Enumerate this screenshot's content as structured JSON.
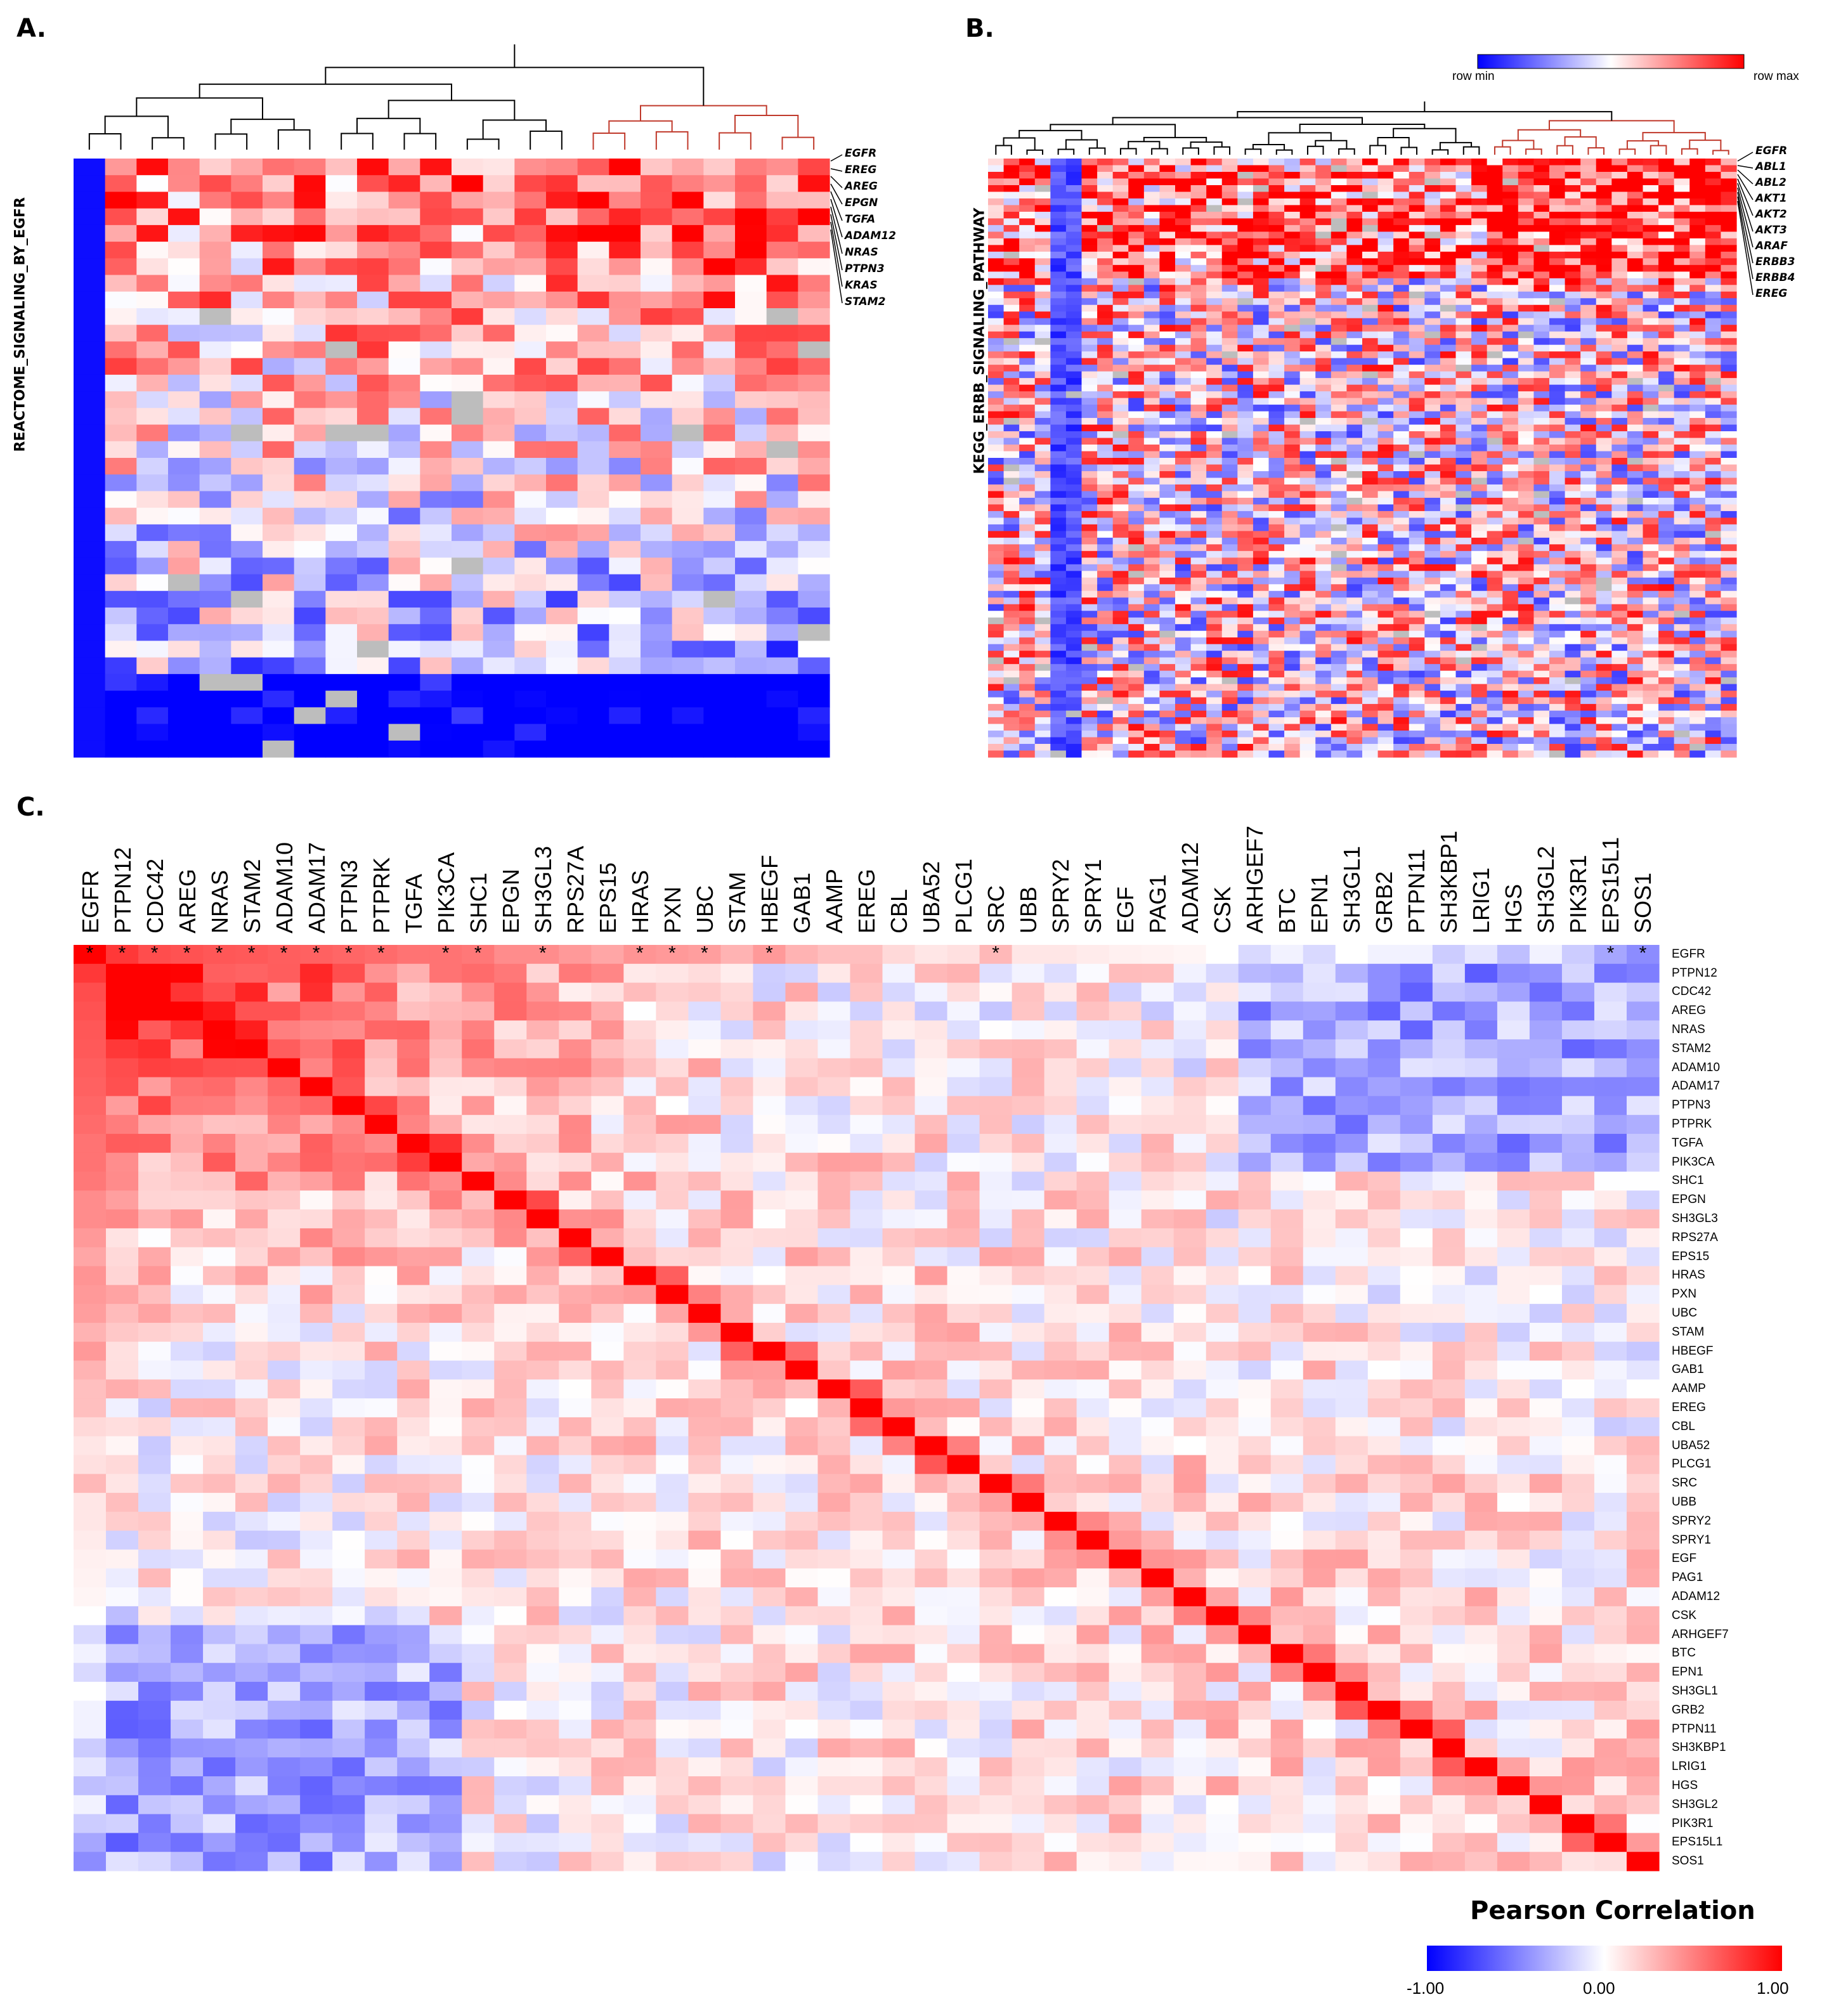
{
  "panels": {
    "a": {
      "letter": "A.",
      "ylabel": "REACTOME_SIGNALING_BY_EGFR",
      "genes": [
        "EGFR",
        "EREG",
        "AREG",
        "EPGN",
        "TGFA",
        "ADAM12",
        "NRAS",
        "PTPN3",
        "KRAS",
        "STAM2"
      ]
    },
    "b": {
      "letter": "B.",
      "ylabel": "KEGG_ERBB_SIGNALING_PATHWAY",
      "genes": [
        "EGFR",
        "ABL1",
        "ABL2",
        "AKT1",
        "AKT2",
        "AKT3",
        "ARAF",
        "ERBB3",
        "ERBB4",
        "EREG"
      ],
      "legend_min": "row min",
      "legend_max": "row max"
    },
    "c": {
      "letter": "C."
    }
  },
  "colors": {
    "blue": "#0000ff",
    "white": "#ffffff",
    "red": "#ff0000",
    "gray": "#bdbdbd",
    "cluster_red": "#c0392b"
  },
  "chart_data": [
    {
      "type": "heatmap",
      "panel": "A",
      "ylabel": "REACTOME_SIGNALING_BY_EGFR",
      "row_labels": [
        "EGFR",
        "EREG",
        "AREG",
        "EPGN",
        "TGFA",
        "ADAM12",
        "NRAS",
        "PTPN3",
        "KRAS",
        "STAM2"
      ],
      "n_rows": 36,
      "n_cols": 24,
      "legend": [
        "row min",
        "row max"
      ],
      "dendrogram": "top"
    },
    {
      "type": "heatmap",
      "panel": "B",
      "ylabel": "KEGG_ERBB_SIGNALING_PATHWAY",
      "row_labels": [
        "EGFR",
        "ABL1",
        "ABL2",
        "AKT1",
        "AKT2",
        "AKT3",
        "ARAF",
        "ERBB3",
        "ERBB4",
        "EREG"
      ],
      "n_rows": 90,
      "n_cols": 48,
      "legend": [
        "row min",
        "row max"
      ],
      "dendrogram": "top"
    },
    {
      "type": "heatmap",
      "panel": "C",
      "legend_title": "Pearson Correlation",
      "legend_ticks": [
        "-1.00",
        "0.00",
        "1.00"
      ],
      "scale": [
        -1,
        1
      ],
      "genes": [
        "EGFR",
        "PTPN12",
        "CDC42",
        "AREG",
        "NRAS",
        "STAM2",
        "ADAM10",
        "ADAM17",
        "PTPN3",
        "PTPRK",
        "TGFA",
        "PIK3CA",
        "SHC1",
        "EPGN",
        "SH3GL3",
        "RPS27A",
        "EPS15",
        "HRAS",
        "PXN",
        "UBC",
        "STAM",
        "HBEGF",
        "GAB1",
        "AAMP",
        "EREG",
        "CBL",
        "UBA52",
        "PLCG1",
        "SRC",
        "UBB",
        "SPRY2",
        "SPRY1",
        "EGF",
        "PAG1",
        "ADAM12",
        "CSK",
        "ARHGEF7",
        "BTC",
        "EPN1",
        "SH3GL1",
        "GRB2",
        "PTPN11",
        "SH3KBP1",
        "LRIG1",
        "HGS",
        "SH3GL2",
        "PIK3R1",
        "EPS15L1",
        "SOS1"
      ],
      "star_marker": "*",
      "significant_with_EGFR": [
        "PTPN12",
        "CDC42",
        "AREG",
        "NRAS",
        "STAM2",
        "ADAM10",
        "ADAM17",
        "PTPN3",
        "PTPRK",
        "PIK3CA",
        "SHC1",
        "SH3GL3",
        "HRAS",
        "PXN",
        "UBC",
        "HBEGF",
        "SRC",
        "EPS15L1",
        "SOS1"
      ],
      "egfr_row_values": [
        1.0,
        0.78,
        0.7,
        0.68,
        0.66,
        0.65,
        0.63,
        0.62,
        0.6,
        0.58,
        0.55,
        0.55,
        0.53,
        0.45,
        0.45,
        0.4,
        0.35,
        0.42,
        0.4,
        0.38,
        0.3,
        0.4,
        0.3,
        0.25,
        0.25,
        0.15,
        0.1,
        0.12,
        0.28,
        0.1,
        0.1,
        0.08,
        0.06,
        0.05,
        0.04,
        0.0,
        -0.15,
        -0.05,
        -0.15,
        0.0,
        -0.05,
        -0.05,
        -0.2,
        -0.1,
        -0.25,
        -0.05,
        -0.2,
        -0.35,
        -0.45
      ]
    }
  ]
}
